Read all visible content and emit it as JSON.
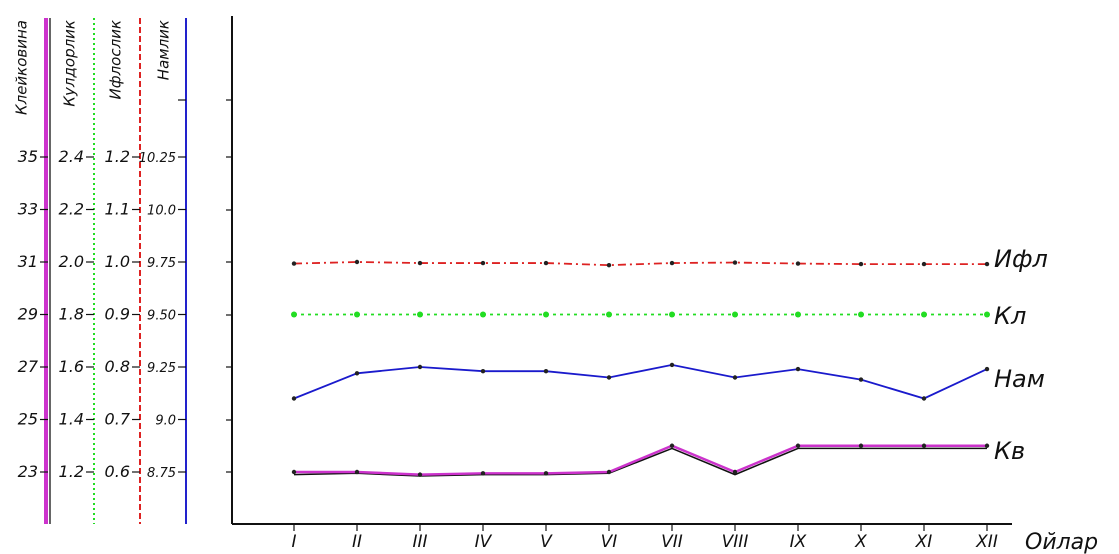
{
  "chart_data": {
    "type": "line",
    "x_title": "Ойлар",
    "categories": [
      "I",
      "II",
      "III",
      "IV",
      "V",
      "VI",
      "VII",
      "VIII",
      "IX",
      "X",
      "XI",
      "XII"
    ],
    "axes": [
      {
        "key": "kv",
        "title": "Клейковина",
        "ticks": [
          "23",
          "25",
          "27",
          "29",
          "31",
          "33",
          "35"
        ],
        "range": [
          23,
          35
        ],
        "color": "#cc33cc"
      },
      {
        "key": "kl",
        "title": "Кулдорлик",
        "ticks": [
          "1.2",
          "1.4",
          "1.6",
          "1.8",
          "2.0",
          "2.2",
          "2.4"
        ],
        "range": [
          1.2,
          2.4
        ],
        "color": "#22dd22"
      },
      {
        "key": "ifl",
        "title": "Ифлослик",
        "ticks": [
          "0.6",
          "0.7",
          "0.8",
          "0.9",
          "1.0",
          "1.1",
          "1.2"
        ],
        "range": [
          0.6,
          1.2
        ],
        "color": "#dd2222"
      },
      {
        "key": "nam",
        "title": "Намлик",
        "ticks": [
          "8.75",
          "9.0",
          "9.25",
          "9.50",
          "9.75",
          "10.0",
          "10.25"
        ],
        "range": [
          8.75,
          10.25
        ],
        "color": "#2222cc"
      }
    ],
    "series": [
      {
        "name": "Ифл",
        "axis": "ifl",
        "color": "#dd2222",
        "dash": "8,4,2,4",
        "values": [
          0.997,
          1.0,
          0.998,
          0.998,
          0.998,
          0.994,
          0.998,
          0.999,
          0.997,
          0.996,
          0.996,
          0.996
        ]
      },
      {
        "name": "Кл",
        "axis": "kl",
        "color": "#22dd22",
        "dash": "3,4",
        "values": [
          1.8,
          1.8,
          1.8,
          1.8,
          1.8,
          1.8,
          1.8,
          1.8,
          1.8,
          1.8,
          1.8,
          1.8
        ]
      },
      {
        "name": "Нам",
        "axis": "nam",
        "color": "#1a1acc",
        "dash": "",
        "values": [
          9.1,
          9.22,
          9.25,
          9.23,
          9.23,
          9.2,
          9.26,
          9.2,
          9.24,
          9.19,
          9.1,
          9.24
        ]
      },
      {
        "name": "Кв",
        "axis": "kv",
        "color": "#cc33cc",
        "dash": "",
        "values": [
          23.0,
          23.0,
          22.9,
          22.95,
          22.95,
          23.0,
          24.0,
          23.0,
          24.0,
          24.0,
          24.0,
          24.0
        ]
      }
    ],
    "series_black": [
      22.9,
      22.95,
      22.85,
      22.9,
      22.9,
      22.95,
      23.9,
      22.9,
      23.9,
      23.9,
      23.9,
      23.9
    ]
  }
}
